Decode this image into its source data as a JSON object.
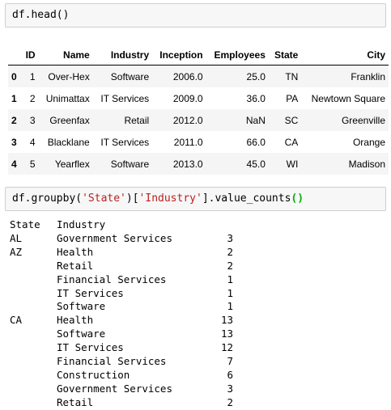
{
  "cell1": {
    "code": "df.head()"
  },
  "table": {
    "columns": [
      "",
      "ID",
      "Name",
      "Industry",
      "Inception",
      "Employees",
      "State",
      "City"
    ],
    "rows": [
      [
        "0",
        "1",
        "Over-Hex",
        "Software",
        "2006.0",
        "25.0",
        "TN",
        "Franklin"
      ],
      [
        "1",
        "2",
        "Unimattax",
        "IT Services",
        "2009.0",
        "36.0",
        "PA",
        "Newtown Square"
      ],
      [
        "2",
        "3",
        "Greenfax",
        "Retail",
        "2012.0",
        "NaN",
        "SC",
        "Greenville"
      ],
      [
        "3",
        "4",
        "Blacklane",
        "IT Services",
        "2011.0",
        "66.0",
        "CA",
        "Orange"
      ],
      [
        "4",
        "5",
        "Yearflex",
        "Software",
        "2013.0",
        "45.0",
        "WI",
        "Madison"
      ]
    ]
  },
  "cell2": {
    "code_prefix": "df.groupby(",
    "arg1": "'State'",
    "mid1": ")[",
    "arg2": "'Industry'",
    "mid2": "].value_counts",
    "parens": "()"
  },
  "output": {
    "header": {
      "state": "State",
      "industry": "Industry"
    },
    "rows": [
      {
        "state": "AL",
        "industry": "Government Services",
        "count": "3"
      },
      {
        "state": "AZ",
        "industry": "Health",
        "count": "2"
      },
      {
        "state": "",
        "industry": "Retail",
        "count": "2"
      },
      {
        "state": "",
        "industry": "Financial Services",
        "count": "1"
      },
      {
        "state": "",
        "industry": "IT Services",
        "count": "1"
      },
      {
        "state": "",
        "industry": "Software",
        "count": "1"
      },
      {
        "state": "CA",
        "industry": "Health",
        "count": "13"
      },
      {
        "state": "",
        "industry": "Software",
        "count": "13"
      },
      {
        "state": "",
        "industry": "IT Services",
        "count": "12"
      },
      {
        "state": "",
        "industry": "Financial Services",
        "count": "7"
      },
      {
        "state": "",
        "industry": "Construction",
        "count": "6"
      },
      {
        "state": "",
        "industry": "Government Services",
        "count": "3"
      },
      {
        "state": "",
        "industry": "Retail",
        "count": "2"
      }
    ]
  }
}
